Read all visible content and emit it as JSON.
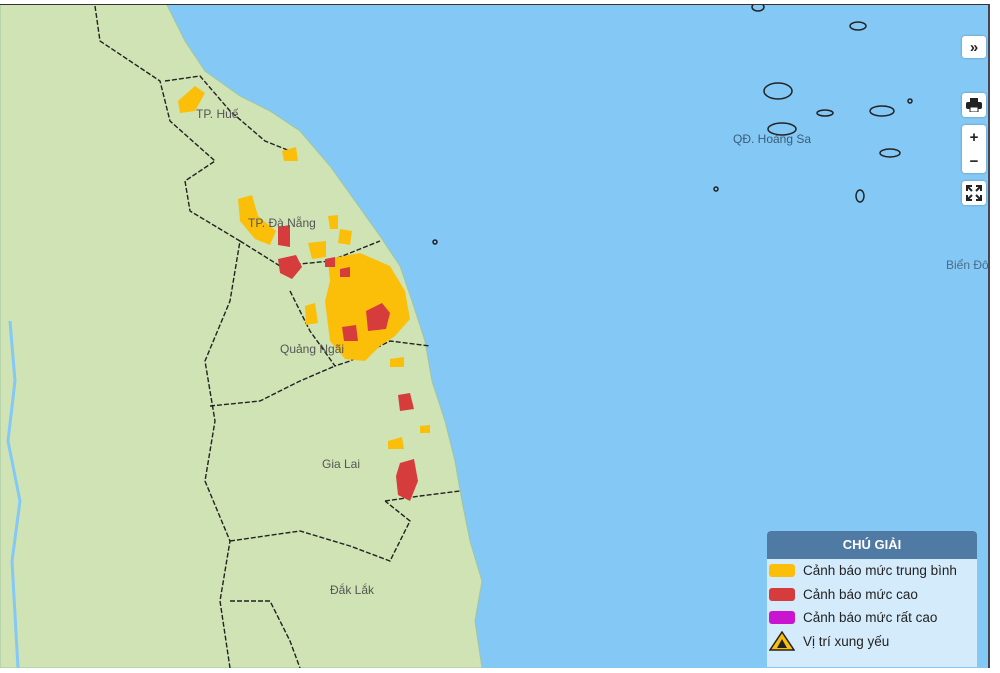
{
  "map": {
    "colors": {
      "sea": "#84c8f5",
      "land": "#cfe3b4",
      "medium": "#fbbf0a",
      "high": "#d63c3c",
      "very_high": "#c915d0"
    },
    "labels": {
      "hue": "TP. Huế",
      "danang": "TP. Đà Nẵng",
      "quangngai": "Quảng Ngãi",
      "gialai": "Gia Lai",
      "daklak": "Đắk Lắk",
      "hoangsa": "QĐ. Hoàng Sa",
      "biendong": "Biển Đô"
    }
  },
  "controls": {
    "expand": "»",
    "print_icon": "printer-icon",
    "zoom_in": "+",
    "zoom_out": "−",
    "fullscreen_icon": "fullscreen-icon"
  },
  "legend": {
    "title": "CHÚ GIẢI",
    "items": [
      {
        "label": "Cảnh báo mức trung bình",
        "color": "#fbbf0a"
      },
      {
        "label": "Cảnh báo mức cao",
        "color": "#d63c3c"
      },
      {
        "label": "Cảnh báo mức rất cao",
        "color": "#c915d0"
      },
      {
        "label": "Vị trí xung yếu",
        "icon": "landslide-warning-icon"
      }
    ]
  }
}
